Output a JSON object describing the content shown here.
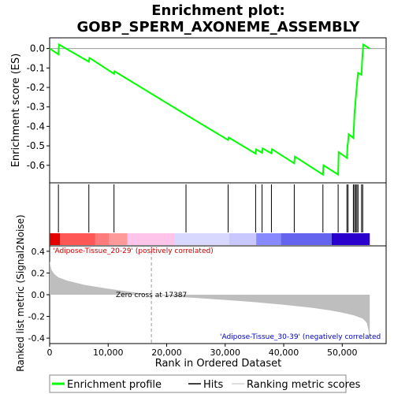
{
  "chart_data": {
    "type": "line",
    "title_line1": "Enrichment plot:",
    "title_line2": "GOBP_SPERM_AXONEME_ASSEMBLY",
    "top_panel": {
      "ylabel": "Enrichment score (ES)",
      "ylim": [
        -0.69,
        0.055
      ],
      "yticks": [
        0.0,
        -0.1,
        -0.2,
        -0.3,
        -0.4,
        -0.5,
        -0.6
      ],
      "ytick_labels": [
        "0.0",
        "-0.1",
        "-0.2",
        "-0.3",
        "-0.4",
        "-0.5",
        "-0.6"
      ],
      "line_color": "#00ff00",
      "points": [
        [
          0,
          0.0
        ],
        [
          1500,
          -0.03
        ],
        [
          1600,
          0.02
        ],
        [
          6700,
          -0.068
        ],
        [
          6800,
          -0.048
        ],
        [
          11000,
          -0.13
        ],
        [
          11100,
          -0.117
        ],
        [
          23300,
          -0.34
        ],
        [
          30500,
          -0.47
        ],
        [
          30600,
          -0.457
        ],
        [
          35200,
          -0.54
        ],
        [
          35300,
          -0.518
        ],
        [
          36300,
          -0.536
        ],
        [
          36400,
          -0.513
        ],
        [
          37900,
          -0.538
        ],
        [
          38000,
          -0.517
        ],
        [
          41800,
          -0.59
        ],
        [
          41900,
          -0.555
        ],
        [
          46700,
          -0.648
        ],
        [
          46800,
          -0.6
        ],
        [
          49300,
          -0.648
        ],
        [
          49400,
          -0.532
        ],
        [
          50800,
          -0.562
        ],
        [
          50900,
          -0.5
        ],
        [
          51000,
          -0.48
        ],
        [
          51100,
          -0.44
        ],
        [
          51900,
          -0.46
        ],
        [
          52000,
          -0.398
        ],
        [
          52100,
          -0.328
        ],
        [
          52200,
          -0.3
        ],
        [
          52300,
          -0.258
        ],
        [
          52400,
          -0.225
        ],
        [
          52500,
          -0.19
        ],
        [
          52600,
          -0.155
        ],
        [
          52700,
          -0.125
        ],
        [
          53300,
          -0.135
        ],
        [
          53400,
          -0.06
        ],
        [
          53500,
          -0.02
        ],
        [
          53600,
          0.02
        ],
        [
          54700,
          0.0
        ]
      ]
    },
    "hits": [
      1500,
      6700,
      11000,
      23300,
      30500,
      35200,
      36300,
      37900,
      41800,
      46700,
      49300,
      50800,
      51000,
      51900,
      52100,
      52300,
      52500,
      52700,
      53300,
      53500
    ],
    "color_bar": {
      "segments": [
        {
          "from": 0,
          "to": 1800,
          "color": "#e50000"
        },
        {
          "from": 1800,
          "to": 7800,
          "color": "#ff5656"
        },
        {
          "from": 7800,
          "to": 10200,
          "color": "#ff7a7a"
        },
        {
          "from": 10200,
          "to": 13300,
          "color": "#ff9a9a"
        },
        {
          "from": 13300,
          "to": 21400,
          "color": "#ffc4ea"
        },
        {
          "from": 21400,
          "to": 30700,
          "color": "#d8d8ff"
        },
        {
          "from": 30700,
          "to": 35300,
          "color": "#c8c8ff"
        },
        {
          "from": 35300,
          "to": 39500,
          "color": "#8888ff"
        },
        {
          "from": 39500,
          "to": 48200,
          "color": "#6464ee"
        },
        {
          "from": 48200,
          "to": 54700,
          "color": "#2a00cc"
        }
      ]
    },
    "bottom_panel": {
      "ylabel": "Ranked list metric (Signal2Noise)",
      "xlabel": "Rank in Ordered Dataset",
      "ylim": [
        -0.45,
        0.45
      ],
      "yticks": [
        0.4,
        0.2,
        0.0,
        -0.2,
        -0.4
      ],
      "ytick_labels": [
        "0.4",
        "0.2",
        "0.0",
        "-0.2",
        "-0.4"
      ],
      "xlim": [
        0,
        57500
      ],
      "xticks": [
        0,
        10000,
        20000,
        30000,
        40000,
        50000
      ],
      "xtick_labels": [
        "0",
        "10,000",
        "20,000",
        "30,000",
        "40,000",
        "50,000"
      ],
      "zero_cross": 17387,
      "zero_cross_label": "Zero cross at 17387",
      "pos_label": "'Adipose-Tissue_20-29' (positively correlated)",
      "neg_label": "'Adipose-Tissue_30-39' (negatively correlated",
      "pos_label_color": "#cc0000",
      "neg_label_color": "#0000cc",
      "metric_profile": [
        [
          0,
          0.31
        ],
        [
          300,
          0.23
        ],
        [
          800,
          0.19
        ],
        [
          1500,
          0.16
        ],
        [
          3000,
          0.13
        ],
        [
          6000,
          0.09
        ],
        [
          10000,
          0.055
        ],
        [
          14000,
          0.025
        ],
        [
          17387,
          0.0
        ],
        [
          20000,
          -0.012
        ],
        [
          25000,
          -0.03
        ],
        [
          30000,
          -0.048
        ],
        [
          35000,
          -0.068
        ],
        [
          40000,
          -0.092
        ],
        [
          45000,
          -0.122
        ],
        [
          48000,
          -0.145
        ],
        [
          50000,
          -0.165
        ],
        [
          52000,
          -0.19
        ],
        [
          53500,
          -0.22
        ],
        [
          54200,
          -0.26
        ],
        [
          54500,
          -0.33
        ],
        [
          54700,
          -0.44
        ]
      ]
    },
    "n_genes": 54700,
    "legend": [
      {
        "label": "Enrichment profile",
        "kind": "profile",
        "color": "#00ff00"
      },
      {
        "label": "Hits",
        "kind": "hits",
        "color": "#000000"
      },
      {
        "label": "Ranking metric scores",
        "kind": "metric",
        "color": "#bebebe"
      }
    ]
  }
}
